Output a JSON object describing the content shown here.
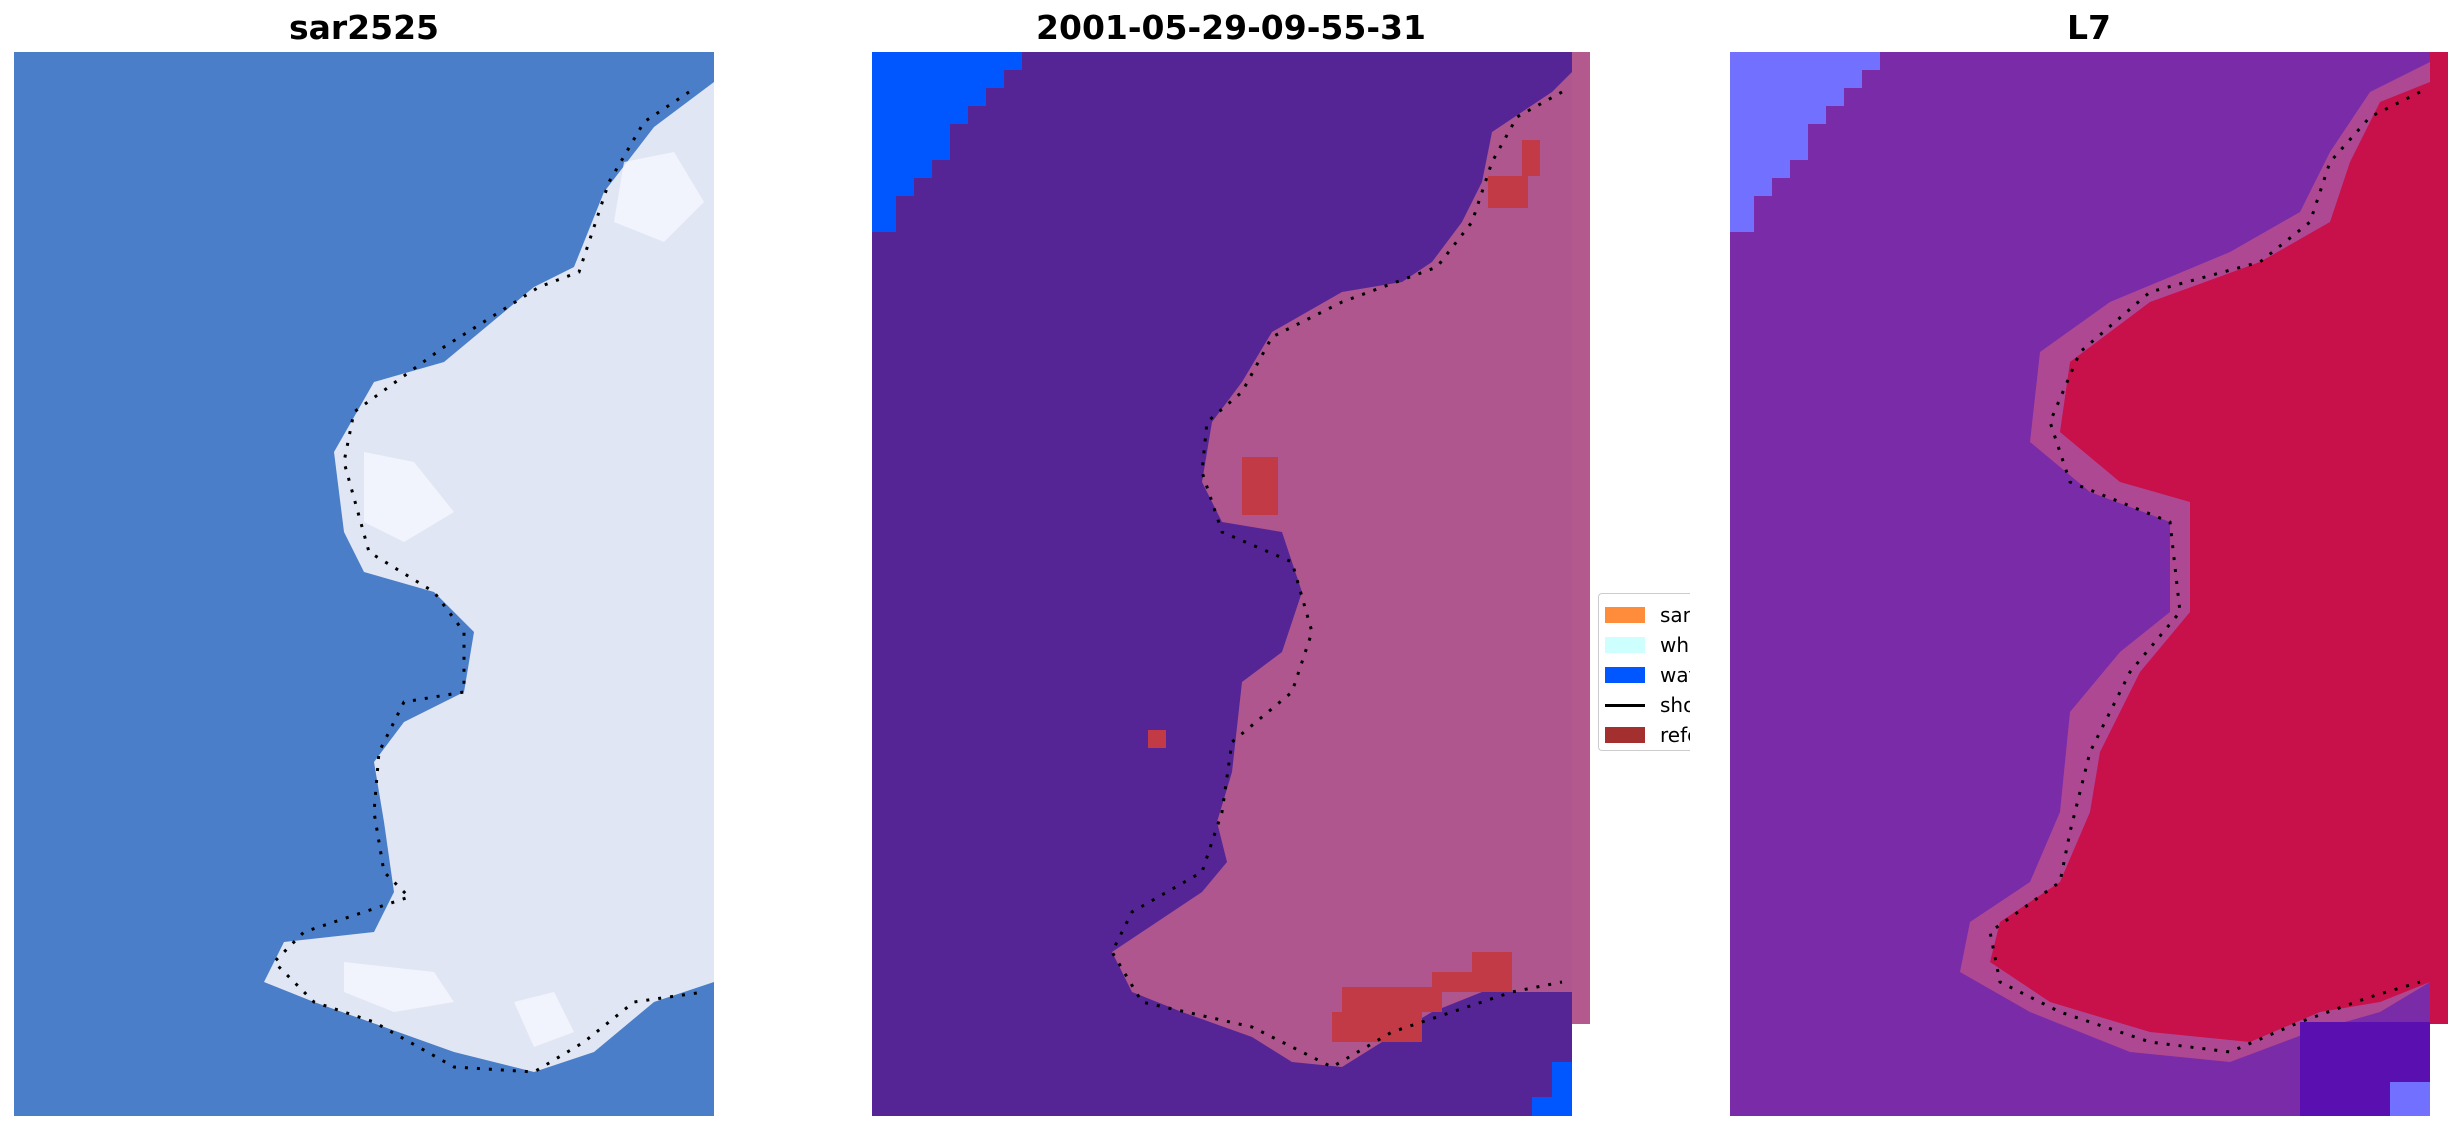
{
  "panels": [
    {
      "title": "sar2525"
    },
    {
      "title": "2001-05-29-09-55-31"
    },
    {
      "title": "L7"
    }
  ],
  "legend": {
    "items": [
      {
        "label": "sand",
        "color": "#ff8c3a",
        "kind": "patch"
      },
      {
        "label": "whitewater",
        "color": "#ccfffe",
        "kind": "patch"
      },
      {
        "label": "water",
        "color": "#0057ff",
        "kind": "patch"
      },
      {
        "label": "shoreline",
        "color": "#000000",
        "kind": "line"
      },
      {
        "label": "reference",
        "color": "#a3302f",
        "kind": "patch"
      }
    ]
  },
  "colors": {
    "sea_rgb": "#4a7ec8",
    "foam_rgb": "#e8ecf6",
    "class_background": "#552596",
    "class_land": "#b4598e",
    "class_water": "#0057ff",
    "class_reference": "#c23a46",
    "prob_background": "#7a2ba8",
    "prob_land": "#c8104a",
    "prob_water": "#7270ff",
    "shoreline": "#000000"
  }
}
